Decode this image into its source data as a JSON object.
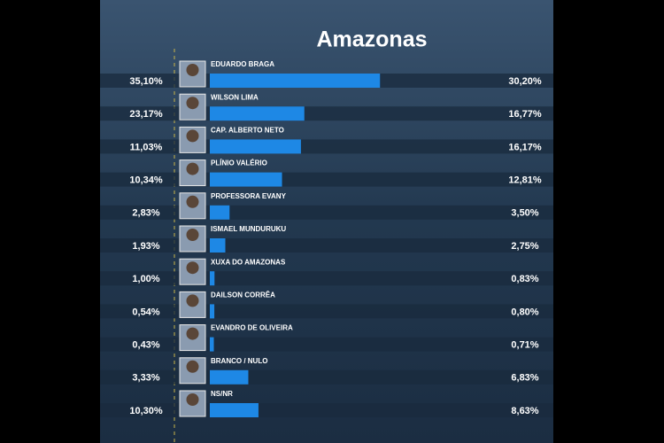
{
  "chart_data": {
    "type": "bar",
    "title": "Amazonas",
    "categories": [
      "EDUARDO BRAGA",
      "WILSON LIMA",
      "CAP. ALBERTO NETO",
      "PLÍNIO VALÉRIO",
      "PROFESSORA EVANY",
      "ISMAEL MUNDURUKU",
      "XUXA DO AMAZONAS",
      "DAILSON CORRÊA",
      "EVANDRO DE OLIVEIRA",
      "BRANCO / NULO",
      "NS/NR"
    ],
    "values": [
      30.2,
      16.77,
      16.17,
      12.81,
      3.5,
      2.75,
      0.83,
      0.8,
      0.71,
      6.83,
      8.63
    ],
    "value_labels": [
      "30,20%",
      "16,77%",
      "16,17%",
      "12,81%",
      "3,50%",
      "2,75%",
      "0,83%",
      "0,80%",
      "0,71%",
      "6,83%",
      "8,63%"
    ],
    "previous_values": [
      35.1,
      23.17,
      11.03,
      10.34,
      2.83,
      1.93,
      1.0,
      0.54,
      0.43,
      3.33,
      10.3
    ],
    "previous_value_labels": [
      "35,10%",
      "23,17%",
      "11,03%",
      "10,34%",
      "2,83%",
      "1,93%",
      "1,00%",
      "0,54%",
      "0,43%",
      "3,33%",
      "10,30%"
    ],
    "color": "#1e88e5",
    "xlim": [
      0,
      52
    ]
  }
}
